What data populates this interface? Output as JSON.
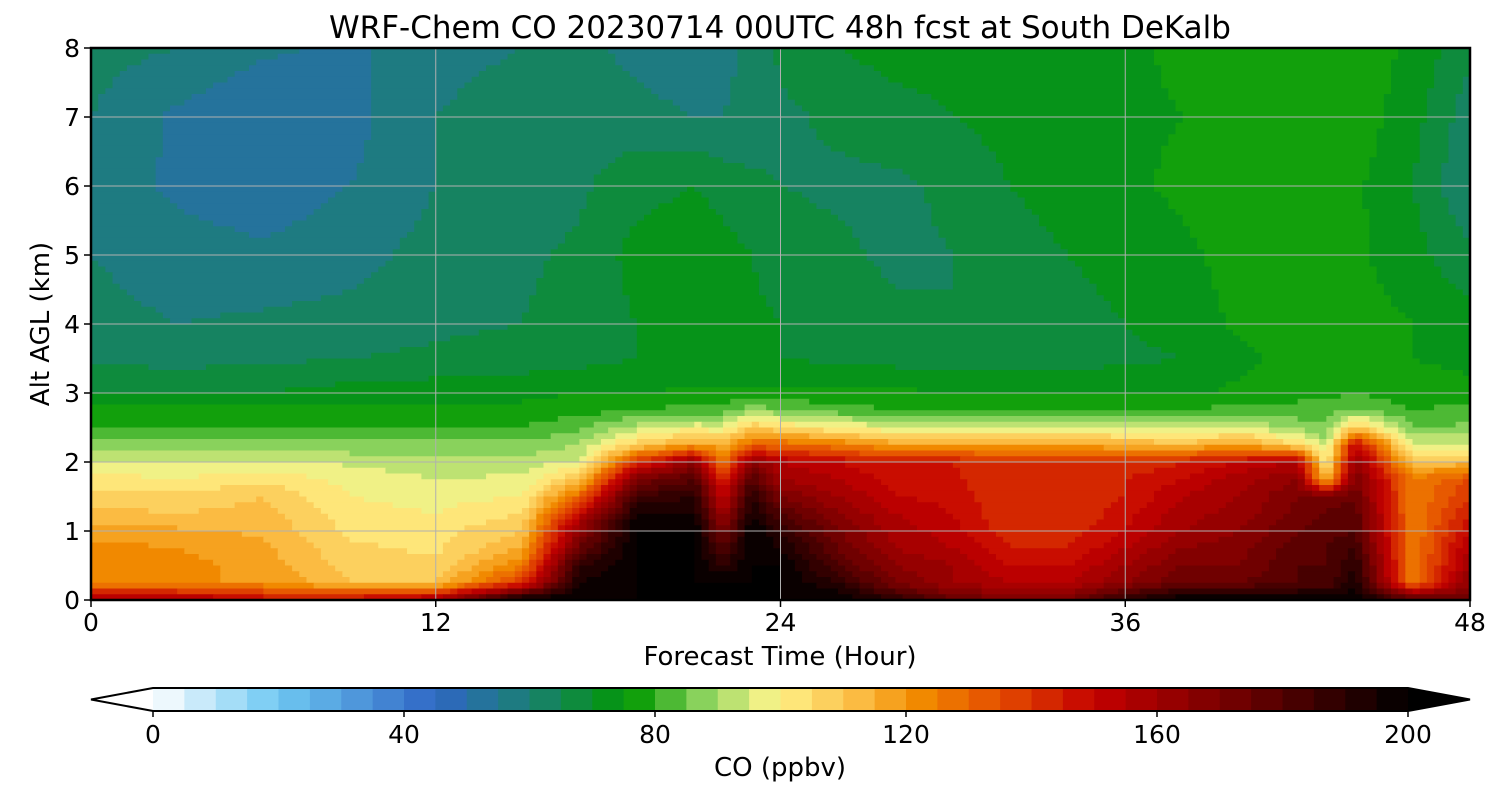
{
  "chart_data": {
    "type": "heatmap",
    "title": "WRF-Chem CO  20230714 00UTC 48h fcst at South DeKalb",
    "xlabel": "Forecast Time (Hour)",
    "ylabel": "Alt AGL (km)",
    "xlim": [
      0,
      48
    ],
    "ylim": [
      0,
      8
    ],
    "x_ticks": [
      "0",
      "12",
      "24",
      "36",
      "48"
    ],
    "y_ticks": [
      "0",
      "1",
      "2",
      "3",
      "4",
      "5",
      "6",
      "7",
      "8"
    ],
    "grid": true,
    "colorbar": {
      "label": "CO  (ppbv)",
      "min": 0,
      "max": 200,
      "ticks": [
        "0",
        "40",
        "80",
        "120",
        "160",
        "200"
      ],
      "extend": "both",
      "stops": [
        {
          "value": 0,
          "color": "#ffffff"
        },
        {
          "value": 20,
          "color": "#6ec8f2"
        },
        {
          "value": 45,
          "color": "#2f66c4"
        },
        {
          "value": 60,
          "color": "#1a7f73"
        },
        {
          "value": 76,
          "color": "#009800"
        },
        {
          "value": 88,
          "color": "#8fd460"
        },
        {
          "value": 99,
          "color": "#fff58c"
        },
        {
          "value": 112,
          "color": "#fbbd45"
        },
        {
          "value": 122,
          "color": "#f28b00"
        },
        {
          "value": 135,
          "color": "#e44d00"
        },
        {
          "value": 150,
          "color": "#c40000"
        },
        {
          "value": 170,
          "color": "#7a0000"
        },
        {
          "value": 200,
          "color": "#000000"
        }
      ]
    },
    "hours": [
      0,
      3,
      6,
      9,
      12,
      15,
      17,
      19,
      21,
      22,
      23,
      24,
      26,
      28,
      30,
      32,
      34,
      36,
      38,
      40,
      42,
      43,
      44,
      46,
      48
    ],
    "levels_km": [
      0,
      0.25,
      0.5,
      0.75,
      1,
      1.25,
      1.5,
      1.75,
      2,
      2.25,
      2.5,
      2.75,
      3,
      3.5,
      4,
      5,
      6,
      7,
      8
    ],
    "values": [
      [
        160,
        160,
        150,
        150,
        160,
        200,
        200,
        200,
        200,
        200,
        200,
        200,
        200,
        190,
        175,
        170,
        170,
        190,
        200,
        200,
        200,
        200,
        200,
        180,
        175
      ],
      [
        120,
        120,
        120,
        110,
        110,
        140,
        195,
        200,
        200,
        200,
        200,
        200,
        190,
        170,
        160,
        155,
        155,
        165,
        175,
        175,
        180,
        180,
        195,
        125,
        165
      ],
      [
        125,
        122,
        118,
        108,
        106,
        125,
        190,
        200,
        200,
        190,
        200,
        200,
        180,
        165,
        160,
        150,
        150,
        160,
        170,
        170,
        180,
        180,
        190,
        125,
        160
      ],
      [
        122,
        120,
        116,
        106,
        104,
        115,
        175,
        200,
        200,
        180,
        200,
        195,
        175,
        160,
        155,
        145,
        145,
        155,
        165,
        168,
        178,
        180,
        185,
        125,
        155
      ],
      [
        118,
        116,
        114,
        104,
        103,
        110,
        165,
        200,
        200,
        170,
        200,
        190,
        170,
        158,
        152,
        142,
        142,
        150,
        160,
        165,
        175,
        178,
        180,
        125,
        150
      ],
      [
        112,
        110,
        112,
        102,
        100,
        105,
        150,
        195,
        195,
        160,
        195,
        180,
        165,
        155,
        150,
        140,
        140,
        148,
        158,
        162,
        172,
        176,
        178,
        125,
        145
      ],
      [
        108,
        106,
        110,
        100,
        98,
        100,
        130,
        185,
        190,
        150,
        190,
        170,
        160,
        150,
        148,
        140,
        140,
        145,
        155,
        160,
        170,
        170,
        175,
        125,
        140
      ],
      [
        102,
        100,
        104,
        98,
        95,
        96,
        110,
        170,
        180,
        140,
        180,
        160,
        155,
        148,
        146,
        140,
        140,
        145,
        150,
        158,
        165,
        110,
        170,
        125,
        135
      ],
      [
        96,
        95,
        96,
        94,
        92,
        92,
        96,
        140,
        165,
        125,
        165,
        155,
        150,
        145,
        145,
        140,
        140,
        140,
        145,
        150,
        155,
        100,
        165,
        110,
        112
      ],
      [
        88,
        88,
        88,
        86,
        86,
        86,
        90,
        108,
        118,
        115,
        130,
        130,
        125,
        118,
        118,
        116,
        118,
        115,
        112,
        118,
        105,
        92,
        150,
        95,
        95
      ],
      [
        80,
        80,
        80,
        80,
        80,
        80,
        84,
        92,
        98,
        96,
        110,
        104,
        100,
        95,
        95,
        94,
        96,
        94,
        92,
        96,
        88,
        86,
        110,
        85,
        86
      ],
      [
        76,
        76,
        76,
        76,
        76,
        76,
        78,
        80,
        82,
        82,
        88,
        86,
        82,
        80,
        80,
        80,
        80,
        80,
        80,
        82,
        82,
        82,
        86,
        80,
        82
      ],
      [
        70,
        70,
        70,
        72,
        73,
        74,
        75,
        75,
        76,
        76,
        76,
        76,
        76,
        76,
        75,
        75,
        74,
        74,
        74,
        76,
        78,
        78,
        80,
        77,
        76
      ],
      [
        64,
        63,
        64,
        65,
        66,
        67,
        68,
        70,
        70,
        70,
        70,
        70,
        69,
        68,
        67,
        68,
        68,
        69,
        70,
        74,
        76,
        76,
        77,
        75,
        74
      ],
      [
        62,
        60,
        61,
        62,
        64,
        65,
        67,
        70,
        72,
        72,
        71,
        70,
        68,
        66,
        65,
        67,
        68,
        70,
        72,
        76,
        78,
        78,
        77,
        75,
        72
      ],
      [
        60,
        57,
        56,
        58,
        62,
        64,
        66,
        72,
        74,
        72,
        70,
        68,
        66,
        64,
        65,
        68,
        70,
        72,
        74,
        77,
        78,
        78,
        76,
        72,
        66
      ],
      [
        58,
        54,
        52,
        55,
        60,
        62,
        64,
        68,
        70,
        68,
        66,
        65,
        64,
        64,
        66,
        70,
        72,
        74,
        76,
        77,
        78,
        78,
        76,
        70,
        60
      ],
      [
        60,
        54,
        50,
        53,
        60,
        63,
        64,
        62,
        60,
        60,
        62,
        64,
        66,
        68,
        70,
        72,
        73,
        74,
        75,
        77,
        79,
        80,
        78,
        72,
        62
      ],
      [
        62,
        60,
        56,
        54,
        58,
        60,
        62,
        58,
        56,
        58,
        62,
        66,
        70,
        72,
        72,
        72,
        73,
        74,
        76,
        78,
        80,
        80,
        78,
        74,
        66
      ]
    ]
  }
}
